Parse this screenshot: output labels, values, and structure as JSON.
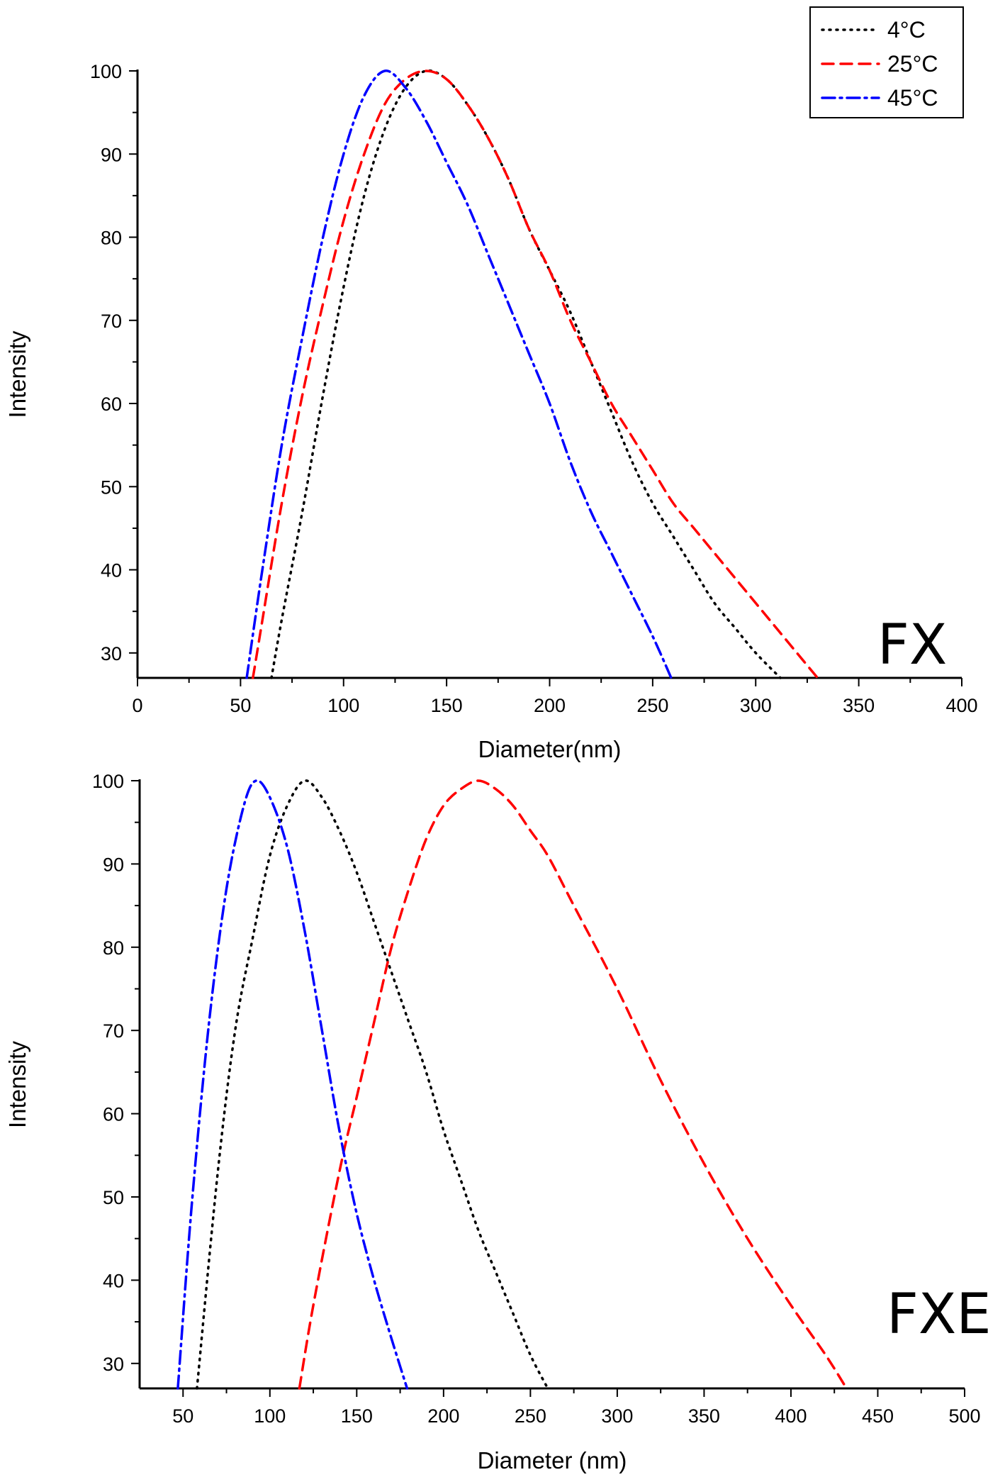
{
  "chart_data": [
    {
      "type": "line",
      "panel_label": "FX",
      "xlabel": "Diameter(nm)",
      "ylabel": "Intensity",
      "xlim": [
        0,
        400
      ],
      "ylim": [
        27,
        100
      ],
      "xticks": [
        0,
        50,
        100,
        150,
        200,
        250,
        300,
        350,
        400
      ],
      "yticks": [
        30,
        40,
        50,
        60,
        70,
        80,
        90,
        100
      ],
      "legend_position": "top-right",
      "series": [
        {
          "name": "4°C",
          "color": "#000000",
          "style": "dotted",
          "x": [
            65,
            70,
            80,
            90,
            100,
            110,
            120,
            130,
            140,
            150,
            160,
            170,
            180,
            190,
            200,
            210,
            220,
            230,
            240,
            250,
            260,
            270,
            280,
            290,
            300,
            312
          ],
          "y": [
            27,
            34,
            47,
            61,
            74,
            85,
            93,
            98,
            100,
            99,
            96,
            92,
            87,
            81,
            76,
            71,
            65,
            59,
            53,
            48,
            44,
            40,
            36,
            33,
            30,
            27
          ]
        },
        {
          "name": "25°C",
          "color": "#ff0000",
          "style": "dashed",
          "x": [
            56,
            60,
            70,
            80,
            90,
            100,
            110,
            120,
            130,
            140,
            150,
            160,
            170,
            180,
            190,
            200,
            210,
            220,
            230,
            240,
            250,
            260,
            270,
            280,
            290,
            300,
            310,
            320,
            330
          ],
          "y": [
            27,
            33,
            48,
            61,
            72,
            82,
            90,
            96,
            99,
            100,
            99,
            96,
            92,
            87,
            81,
            76,
            70,
            65,
            60,
            56,
            52,
            48,
            45,
            42,
            39,
            36,
            33,
            30,
            27
          ]
        },
        {
          "name": "45°C",
          "color": "#0000ff",
          "style": "dash-dot",
          "x": [
            53,
            60,
            70,
            80,
            90,
            100,
            110,
            120,
            130,
            140,
            150,
            160,
            170,
            180,
            190,
            200,
            210,
            220,
            230,
            240,
            250,
            259
          ],
          "y": [
            27,
            39,
            55,
            68,
            80,
            90,
            97,
            100,
            98,
            94,
            89,
            84,
            78,
            72,
            66,
            60,
            53,
            47,
            42,
            37,
            32,
            27
          ]
        }
      ]
    },
    {
      "type": "line",
      "panel_label": "FXE",
      "xlabel": "Diameter (nm)",
      "ylabel": "Intensity",
      "xlim": [
        25,
        500
      ],
      "ylim": [
        27,
        100
      ],
      "xticks": [
        50,
        100,
        150,
        200,
        250,
        300,
        350,
        400,
        450,
        500
      ],
      "yticks": [
        30,
        40,
        50,
        60,
        70,
        80,
        90,
        100
      ],
      "series": [
        {
          "name": "4°C",
          "color": "#000000",
          "style": "dotted",
          "x": [
            58,
            70,
            80,
            90,
            100,
            110,
            120,
            130,
            140,
            150,
            160,
            170,
            180,
            190,
            200,
            210,
            220,
            230,
            240,
            250,
            260
          ],
          "y": [
            27,
            53,
            70,
            81,
            91,
            97,
            100,
            98,
            94,
            89,
            83,
            77,
            71,
            65,
            58,
            52,
            46,
            41,
            36,
            31,
            27
          ]
        },
        {
          "name": "25°C",
          "color": "#ff0000",
          "style": "dashed",
          "x": [
            117,
            125,
            140,
            150,
            160,
            170,
            180,
            190,
            200,
            210,
            220,
            230,
            240,
            250,
            260,
            275,
            300,
            325,
            350,
            375,
            400,
            420,
            432
          ],
          "y": [
            27,
            37,
            53,
            62,
            71,
            80,
            87,
            93,
            97,
            99,
            100,
            99,
            97,
            94,
            91,
            85,
            75,
            64,
            54,
            45,
            37,
            31,
            27
          ]
        },
        {
          "name": "45°C",
          "color": "#0000ff",
          "style": "dash-dot",
          "x": [
            47,
            55,
            65,
            75,
            85,
            92,
            100,
            110,
            120,
            130,
            140,
            150,
            160,
            170,
            179
          ],
          "y": [
            27,
            49,
            71,
            87,
            97,
            100,
            98,
            92,
            82,
            70,
            58,
            48,
            40,
            33,
            27
          ]
        }
      ]
    }
  ]
}
